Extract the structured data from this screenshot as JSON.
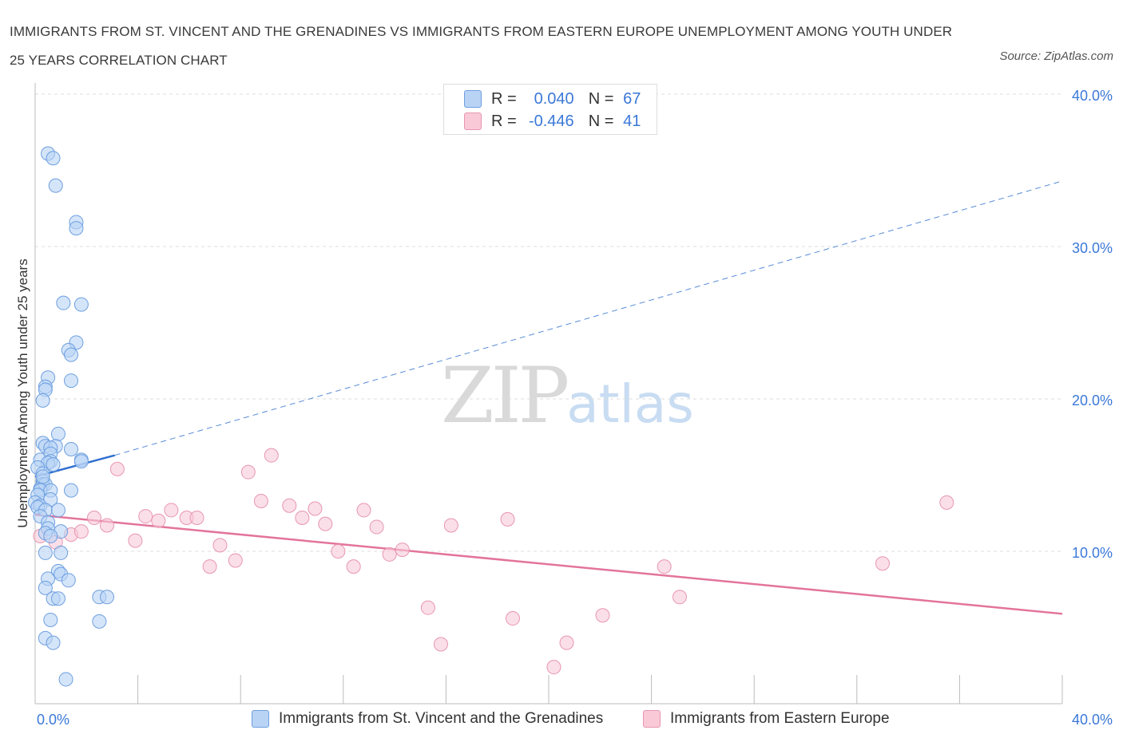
{
  "title": "IMMIGRANTS FROM ST. VINCENT AND THE GRENADINES VS IMMIGRANTS FROM EASTERN EUROPE UNEMPLOYMENT AMONG YOUTH UNDER 25 YEARS CORRELATION CHART",
  "source": "Source: ZipAtlas.com",
  "watermark": {
    "zip": "ZIP",
    "atlas": "atlas"
  },
  "legend": {
    "r_label": "R =",
    "n_label": "N =",
    "rows": [
      {
        "r": "0.040",
        "n": "67"
      },
      {
        "r": "-0.446",
        "n": "41"
      }
    ]
  },
  "colors": {
    "blue_fill": "#b9d3f5",
    "blue_stroke": "#6d9fe0",
    "blue_line": "#2f6fd0",
    "pink_fill": "#f9c9d8",
    "pink_stroke": "#e896b0",
    "pink_line": "#e3749c",
    "axis_text": "#3b78d8",
    "grid": "#dddddd"
  },
  "chart_data": {
    "type": "scatter",
    "ylabel": "Unemployment Among Youth under 25 years",
    "xlabel": "",
    "xlim": [
      0,
      40
    ],
    "ylim": [
      0,
      40
    ],
    "x_tick_labels": [
      "0.0%",
      "40.0%"
    ],
    "y_tick_labels": [
      "10.0%",
      "20.0%",
      "30.0%",
      "40.0%"
    ],
    "grid": true,
    "series": [
      {
        "name": "Immigrants from St. Vincent and the Grenadines",
        "color": "blue",
        "trend": {
          "x": [
            0.0,
            3.1,
            40.0
          ],
          "y": [
            14.9,
            16.3,
            34.3
          ],
          "solid_until": 3.1
        },
        "points": [
          [
            0.5,
            36.1
          ],
          [
            0.7,
            35.8
          ],
          [
            0.8,
            34.0
          ],
          [
            1.6,
            31.6
          ],
          [
            1.6,
            31.2
          ],
          [
            1.1,
            26.3
          ],
          [
            1.8,
            26.2
          ],
          [
            1.6,
            23.7
          ],
          [
            1.3,
            23.2
          ],
          [
            1.4,
            22.9
          ],
          [
            0.5,
            21.4
          ],
          [
            1.4,
            21.2
          ],
          [
            0.4,
            20.8
          ],
          [
            0.4,
            20.6
          ],
          [
            0.3,
            19.9
          ],
          [
            0.9,
            17.7
          ],
          [
            0.3,
            17.1
          ],
          [
            0.4,
            16.9
          ],
          [
            0.8,
            16.9
          ],
          [
            0.6,
            16.8
          ],
          [
            1.4,
            16.7
          ],
          [
            0.6,
            16.4
          ],
          [
            0.2,
            16.0
          ],
          [
            0.6,
            15.9
          ],
          [
            1.8,
            16.0
          ],
          [
            0.5,
            15.8
          ],
          [
            0.1,
            15.5
          ],
          [
            0.7,
            15.7
          ],
          [
            0.3,
            15.1
          ],
          [
            0.3,
            14.6
          ],
          [
            0.3,
            14.4
          ],
          [
            0.2,
            14.1
          ],
          [
            0.4,
            14.4
          ],
          [
            0.2,
            14.0
          ],
          [
            0.6,
            14.0
          ],
          [
            1.4,
            14.0
          ],
          [
            0.1,
            13.7
          ],
          [
            0.0,
            13.2
          ],
          [
            0.2,
            13.0
          ],
          [
            0.6,
            13.4
          ],
          [
            0.1,
            12.9
          ],
          [
            0.4,
            12.7
          ],
          [
            0.9,
            12.7
          ],
          [
            0.2,
            12.3
          ],
          [
            0.5,
            11.9
          ],
          [
            0.5,
            11.5
          ],
          [
            0.4,
            11.2
          ],
          [
            1.0,
            11.3
          ],
          [
            0.6,
            11.0
          ],
          [
            0.4,
            9.9
          ],
          [
            1.0,
            9.9
          ],
          [
            0.9,
            8.7
          ],
          [
            1.0,
            8.5
          ],
          [
            0.5,
            8.2
          ],
          [
            1.3,
            8.1
          ],
          [
            0.4,
            7.6
          ],
          [
            0.7,
            6.9
          ],
          [
            0.9,
            6.9
          ],
          [
            2.5,
            7.0
          ],
          [
            2.8,
            7.0
          ],
          [
            0.6,
            5.5
          ],
          [
            2.5,
            5.4
          ],
          [
            0.4,
            4.3
          ],
          [
            0.7,
            4.0
          ],
          [
            1.2,
            1.6
          ],
          [
            0.3,
            14.9
          ],
          [
            1.8,
            15.9
          ]
        ]
      },
      {
        "name": "Immigrants from Eastern Europe",
        "color": "pink",
        "trend": {
          "x": [
            0.0,
            40.0
          ],
          "y": [
            12.4,
            5.9
          ]
        },
        "points": [
          [
            0.2,
            11.0
          ],
          [
            0.8,
            10.6
          ],
          [
            1.4,
            11.1
          ],
          [
            1.8,
            11.3
          ],
          [
            2.3,
            12.2
          ],
          [
            2.8,
            11.7
          ],
          [
            3.2,
            15.4
          ],
          [
            3.9,
            10.7
          ],
          [
            4.3,
            12.3
          ],
          [
            4.8,
            12.0
          ],
          [
            5.3,
            12.7
          ],
          [
            5.9,
            12.2
          ],
          [
            6.3,
            12.2
          ],
          [
            6.8,
            9.0
          ],
          [
            7.2,
            10.4
          ],
          [
            7.8,
            9.4
          ],
          [
            8.3,
            15.2
          ],
          [
            8.8,
            13.3
          ],
          [
            9.2,
            16.3
          ],
          [
            9.9,
            13.0
          ],
          [
            10.4,
            12.2
          ],
          [
            10.9,
            12.8
          ],
          [
            11.3,
            11.8
          ],
          [
            11.8,
            10.0
          ],
          [
            12.4,
            9.0
          ],
          [
            12.8,
            12.7
          ],
          [
            13.3,
            11.6
          ],
          [
            13.8,
            9.8
          ],
          [
            14.3,
            10.1
          ],
          [
            15.3,
            6.3
          ],
          [
            15.8,
            3.9
          ],
          [
            16.2,
            11.7
          ],
          [
            18.4,
            12.1
          ],
          [
            18.6,
            5.6
          ],
          [
            20.2,
            2.4
          ],
          [
            20.7,
            4.0
          ],
          [
            22.1,
            5.8
          ],
          [
            24.5,
            9.0
          ],
          [
            25.1,
            7.0
          ],
          [
            33.0,
            9.2
          ],
          [
            35.5,
            13.2
          ]
        ]
      }
    ]
  }
}
